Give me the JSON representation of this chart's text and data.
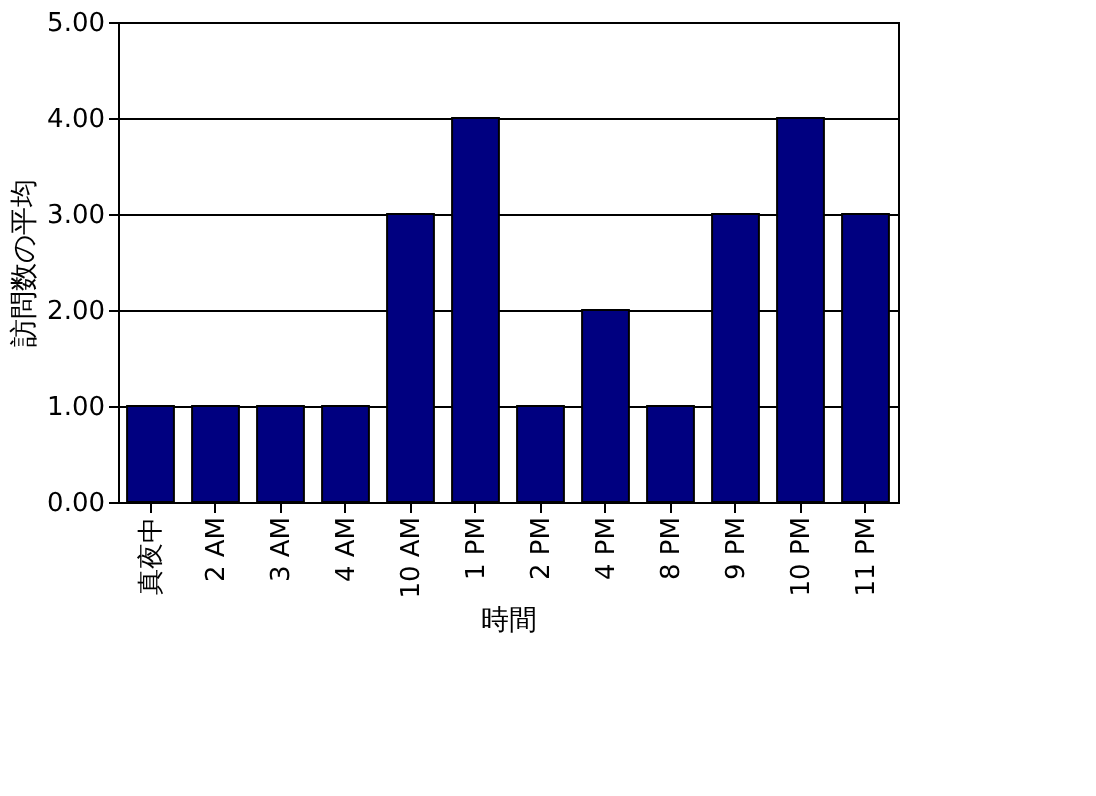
{
  "chart_data": {
    "type": "bar",
    "xlabel": "時間",
    "ylabel": "訪問数の平均",
    "categories": [
      "真夜中",
      "2 AM",
      "3 AM",
      "4 AM",
      "10 AM",
      "1 PM",
      "2 PM",
      "4 PM",
      "8 PM",
      "9 PM",
      "10 PM",
      "11 PM"
    ],
    "values": [
      1,
      1,
      1,
      1,
      3,
      4,
      1,
      2,
      1,
      3,
      4,
      3
    ],
    "color": "#000080",
    "ylim": [
      0,
      5
    ],
    "yticks": [
      {
        "value": 0,
        "label": "0.00"
      },
      {
        "value": 1,
        "label": "1.00"
      },
      {
        "value": 2,
        "label": "2.00"
      },
      {
        "value": 3,
        "label": "3.00"
      },
      {
        "value": 4,
        "label": "4.00"
      },
      {
        "value": 5,
        "label": "5.00"
      }
    ],
    "grid": "y"
  }
}
